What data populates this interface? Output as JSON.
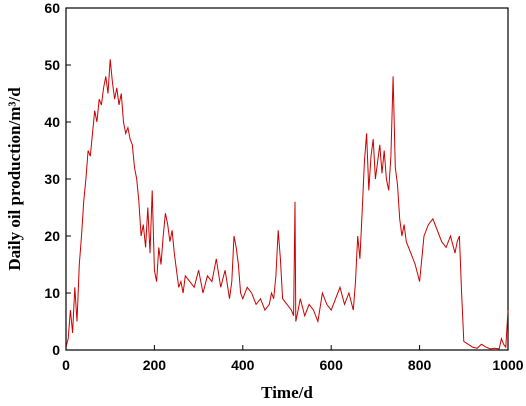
{
  "chart_data": {
    "type": "line",
    "title": "",
    "xlabel": "Time/d",
    "ylabel": "Daily oil production/m³/d",
    "xlim": [
      0,
      1000
    ],
    "ylim": [
      0,
      60
    ],
    "xticks": [
      "0",
      "200",
      "400",
      "600",
      "800",
      "1000"
    ],
    "yticks": [
      "0",
      "10",
      "20",
      "30",
      "40",
      "50",
      "60"
    ],
    "grid": false,
    "legend": "none",
    "series": [
      {
        "color": "#cc0000",
        "x": [
          0,
          5,
          10,
          15,
          20,
          25,
          30,
          35,
          40,
          45,
          50,
          55,
          60,
          65,
          70,
          75,
          80,
          85,
          90,
          95,
          100,
          105,
          110,
          115,
          120,
          125,
          130,
          135,
          140,
          145,
          150,
          155,
          160,
          165,
          170,
          175,
          180,
          185,
          190,
          195,
          200,
          205,
          210,
          215,
          220,
          225,
          230,
          235,
          240,
          245,
          250,
          255,
          260,
          265,
          270,
          280,
          290,
          300,
          310,
          320,
          330,
          340,
          350,
          360,
          370,
          375,
          380,
          385,
          390,
          395,
          400,
          410,
          420,
          430,
          440,
          450,
          460,
          465,
          470,
          475,
          480,
          485,
          490,
          500,
          510,
          515,
          518,
          520,
          525,
          530,
          540,
          550,
          560,
          570,
          580,
          590,
          600,
          610,
          620,
          630,
          640,
          650,
          655,
          660,
          665,
          670,
          675,
          680,
          685,
          690,
          695,
          700,
          705,
          710,
          715,
          720,
          725,
          730,
          735,
          740,
          745,
          750,
          755,
          760,
          765,
          770,
          780,
          790,
          800,
          810,
          820,
          830,
          840,
          850,
          860,
          870,
          880,
          885,
          890,
          895,
          900,
          910,
          920,
          930,
          940,
          950,
          960,
          970,
          980,
          985,
          990,
          995,
          1000
        ],
        "y": [
          0.5,
          2,
          7,
          3,
          11,
          5,
          15,
          20,
          26,
          30,
          35,
          34,
          38,
          42,
          40,
          44,
          43,
          46,
          48,
          45,
          51,
          47,
          44,
          46,
          43,
          45,
          40,
          38,
          39,
          37,
          36,
          32,
          30,
          26,
          20,
          22,
          18,
          25,
          17,
          28,
          14,
          12,
          18,
          15,
          20,
          24,
          22,
          19,
          21,
          17,
          14,
          11,
          12,
          10,
          13,
          12,
          11,
          14,
          10,
          13,
          12,
          16,
          11,
          14,
          9,
          12,
          20,
          18,
          15,
          10,
          9,
          11,
          10,
          8,
          9,
          7,
          8,
          10,
          9,
          13,
          21,
          16,
          9,
          8,
          7,
          6,
          26,
          5,
          7,
          9,
          6,
          8,
          7,
          5,
          10,
          8,
          7,
          9,
          11,
          8,
          10,
          7,
          12,
          20,
          16,
          24,
          33,
          38,
          28,
          34,
          37,
          30,
          33,
          36,
          31,
          35,
          30,
          28,
          34,
          48,
          32,
          29,
          23,
          20,
          22,
          19,
          17,
          15,
          12,
          20,
          22,
          23,
          21,
          19,
          18,
          20,
          17,
          19,
          20,
          10,
          1.5,
          1,
          0.5,
          0.3,
          1,
          0.5,
          0.2,
          0.3,
          0.2,
          2,
          1,
          0.5,
          7
        ]
      }
    ]
  }
}
